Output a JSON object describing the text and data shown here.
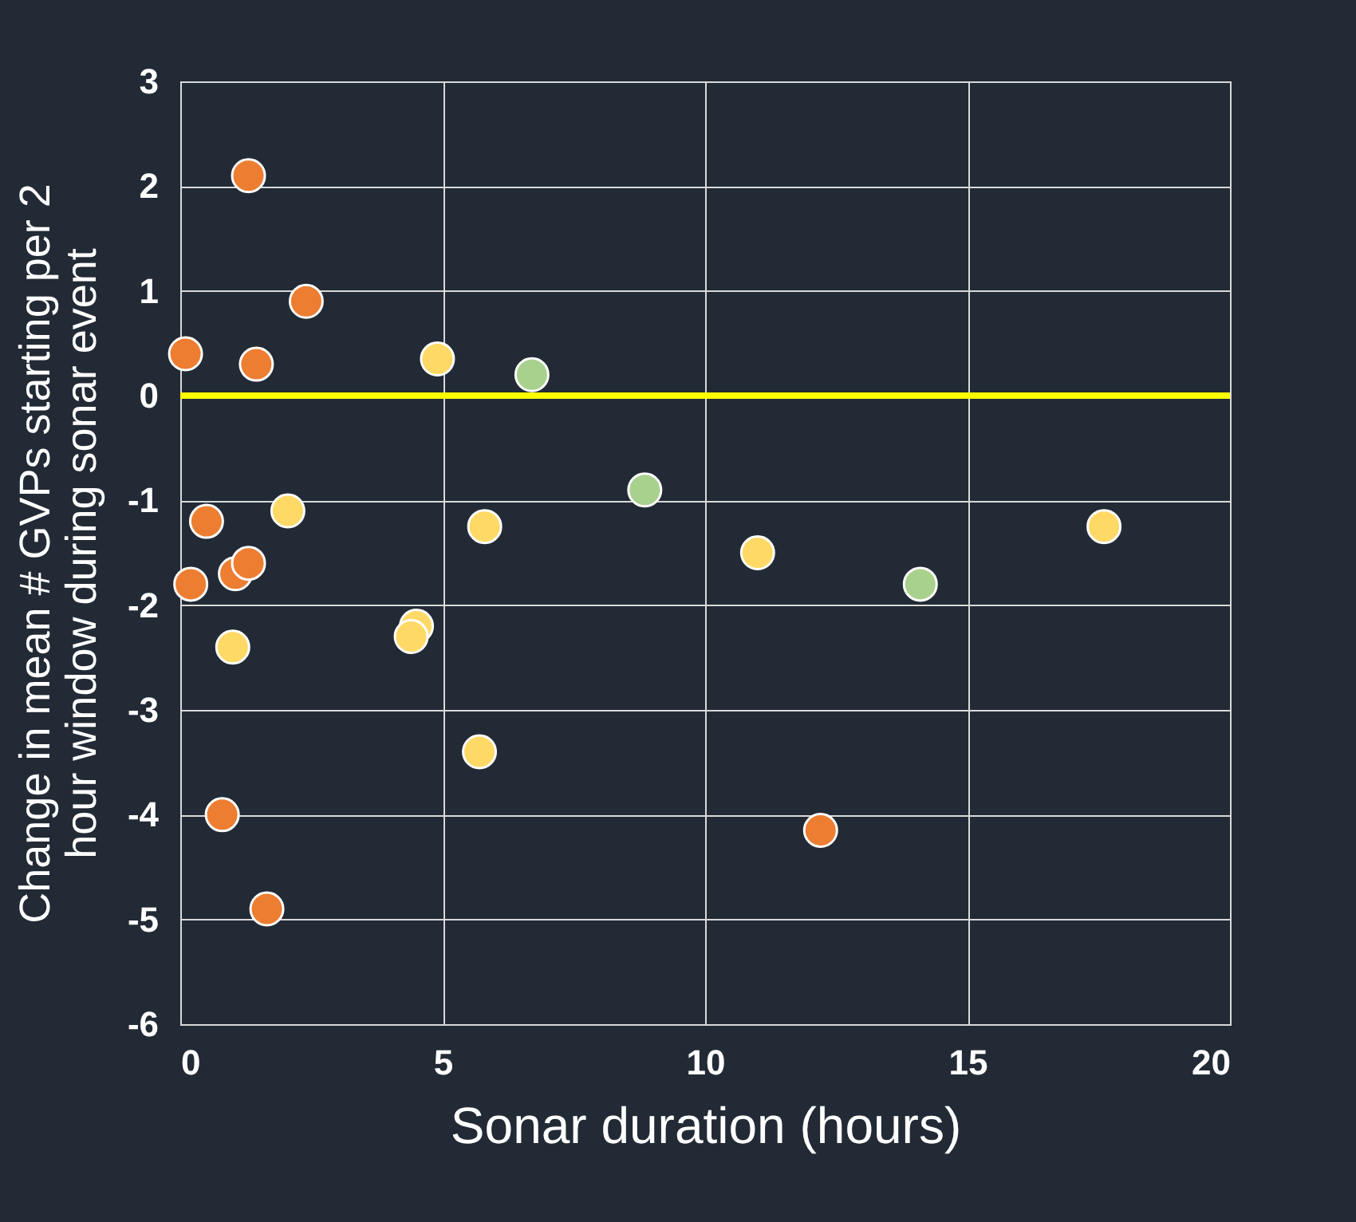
{
  "chart_data": {
    "type": "scatter",
    "xlabel": "Sonar  duration (hours)",
    "ylabel": "Change in mean # GVPs starting per 2 hour window during sonar event",
    "xlim": [
      0,
      20
    ],
    "xticks": [
      0,
      5,
      10,
      15,
      20
    ],
    "ylim": [
      -6,
      3
    ],
    "yticks": [
      -6,
      -5,
      -4,
      -3,
      -2,
      -1,
      0,
      1,
      2,
      3
    ],
    "grid": true,
    "marker": "circle",
    "ref_lines": [
      {
        "axis": "y",
        "value": 0,
        "color": "#ffff00"
      }
    ],
    "series": [
      {
        "color": "#ed7d31",
        "x": [
          0.1,
          1.3,
          2.4,
          1.45,
          0.5,
          0.2,
          1.05,
          1.3,
          0.8,
          1.65,
          12.2
        ],
        "values": [
          0.4,
          2.1,
          0.9,
          0.3,
          -1.2,
          -1.8,
          -1.7,
          -1.6,
          -4.0,
          -4.9,
          -4.15
        ]
      },
      {
        "color": "#ffd966",
        "x": [
          4.9,
          2.05,
          1.0,
          4.5,
          4.4,
          5.8,
          5.7,
          11.0,
          17.6
        ],
        "values": [
          0.35,
          -1.1,
          -2.4,
          -2.2,
          -2.3,
          -1.25,
          -3.4,
          -1.5,
          -1.25
        ]
      },
      {
        "color": "#a9d18e",
        "x": [
          6.7,
          8.85,
          14.1
        ],
        "values": [
          0.2,
          -0.9,
          -1.8
        ]
      }
    ]
  }
}
